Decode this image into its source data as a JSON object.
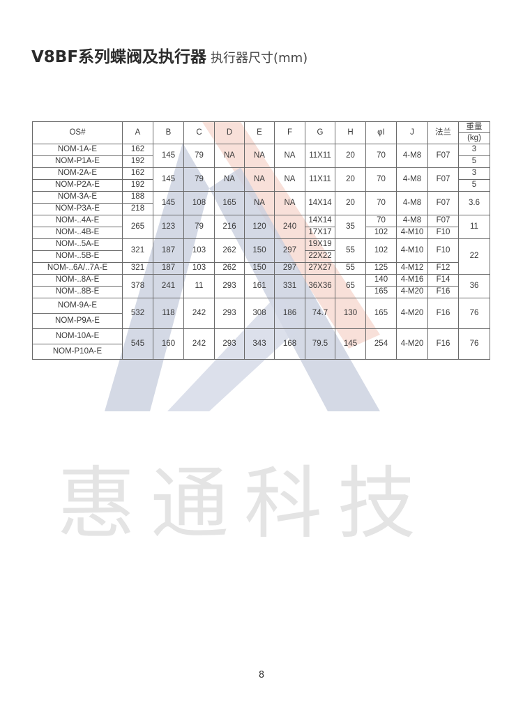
{
  "title": {
    "main": "V8BF系列蝶阀及执行器",
    "sub": "执行器尺寸(mm)"
  },
  "watermark": {
    "text": "惠通科技",
    "colors": {
      "blue": "#c9cfdf",
      "peach": "#f6d6cc"
    }
  },
  "table": {
    "rows": [
      [
        "OS#",
        "A",
        "B",
        "C",
        "D",
        "E",
        "F",
        "G",
        "H",
        "φI",
        "J",
        "法兰",
        "重量"
      ],
      [
        "(kg)"
      ],
      [
        "NOM-1A-E",
        "162",
        "145",
        "79",
        "NA",
        "NA",
        "NA",
        "11X11",
        "20",
        "70",
        "4-M8",
        "F07",
        "3"
      ],
      [
        "NOM-P1A-E",
        "192",
        "5"
      ],
      [
        "NOM-2A-E",
        "162",
        "145",
        "79",
        "NA",
        "NA",
        "NA",
        "11X11",
        "20",
        "70",
        "4-M8",
        "F07",
        "3"
      ],
      [
        "NOM-P2A-E",
        "192",
        "5"
      ],
      [
        "NOM-3A-E",
        "188",
        "145",
        "108",
        "165",
        "NA",
        "NA",
        "14X14",
        "20",
        "70",
        "4-M8",
        "F07",
        "3.6"
      ],
      [
        "NOM-P3A-E",
        "218"
      ],
      [
        "NOM-..4A-E",
        "265",
        "123",
        "79",
        "216",
        "120",
        "240",
        "14X14",
        "35",
        "70",
        "4-M8",
        "F07",
        "11"
      ],
      [
        "NOM-..4B-E",
        "17X17",
        "102",
        "4-M10",
        "F10"
      ],
      [
        "NOM-..5A-E",
        "321",
        "187",
        "103",
        "262",
        "150",
        "297",
        "19X19",
        "55",
        "102",
        "4-M10",
        "F10",
        "22"
      ],
      [
        "NOM-..5B-E",
        "22X22"
      ],
      [
        "NOM-..6A/..7A-E",
        "321",
        "187",
        "103",
        "262",
        "150",
        "297",
        "27X27",
        "55",
        "125",
        "4-M12",
        "F12"
      ],
      [
        "NOM-..8A-E",
        "378",
        "241",
        "11",
        "293",
        "161",
        "331",
        "36X36",
        "65",
        "140",
        "4-M16",
        "F14",
        "36"
      ],
      [
        "NOM-..8B-E",
        "165",
        "4-M20",
        "F16"
      ],
      [
        "NOM-9A-E",
        "532",
        "118",
        "242",
        "293",
        "308",
        "186",
        "74.7",
        "130",
        "165",
        "4-M20",
        "F16",
        "76"
      ],
      [
        "NOM-P9A-E"
      ],
      [
        "NOM-10A-E",
        "545",
        "160",
        "242",
        "293",
        "343",
        "168",
        "79.5",
        "145",
        "254",
        "4-M20",
        "F16",
        "76"
      ],
      [
        "NOM-P10A-E"
      ]
    ]
  },
  "page_number": "8"
}
